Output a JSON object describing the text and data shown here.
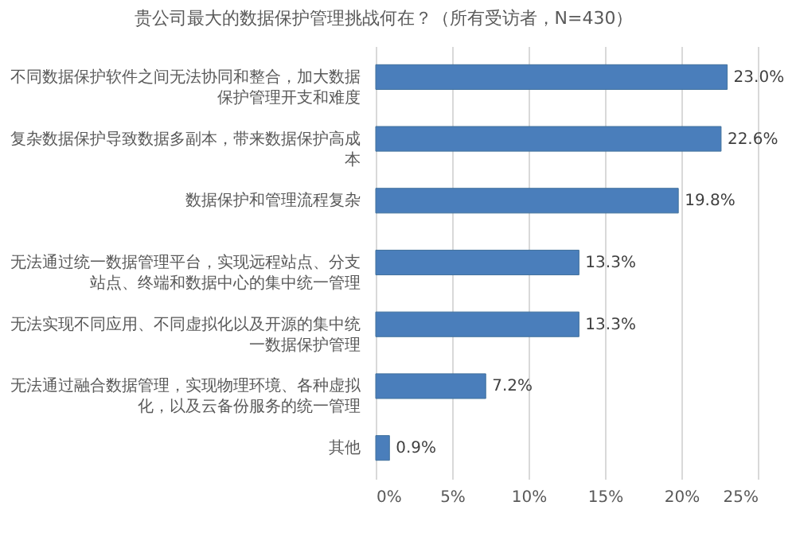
{
  "chart_data": {
    "type": "bar",
    "orientation": "horizontal",
    "title": "贵公司最大的数据保护管理挑战何在？（所有受访者，N=430）",
    "categories": [
      "不同数据保护软件之间无法协同和整合，加大数据保护管理开支和难度",
      "复杂数据保护导致数据多副本，带来数据保护高成本",
      "数据保护和管理流程复杂",
      "无法通过统一数据管理平台，实现远程站点、分支站点、终端和数据中心的集中统一管理",
      "无法实现不同应用、不同虚拟化以及开源的集中统一数据保护管理",
      "无法通过融合数据管理，实现物理环境、各种虚拟化，以及云备份服务的统一管理",
      "其他"
    ],
    "values": [
      23.0,
      22.6,
      19.8,
      13.3,
      13.3,
      7.2,
      0.9
    ],
    "value_labels": [
      "23.0%",
      "22.6%",
      "19.8%",
      "13.3%",
      "13.3%",
      "7.2%",
      "0.9%"
    ],
    "color": "#4a7ebb",
    "xlim": [
      0,
      25
    ],
    "xticks": [
      {
        "value": 0,
        "label": "0%"
      },
      {
        "value": 5,
        "label": "5%"
      },
      {
        "value": 10,
        "label": "10%"
      },
      {
        "value": 15,
        "label": "15%"
      },
      {
        "value": 20,
        "label": "20%"
      },
      {
        "value": 25,
        "label": "25%"
      }
    ],
    "grid": "x"
  }
}
